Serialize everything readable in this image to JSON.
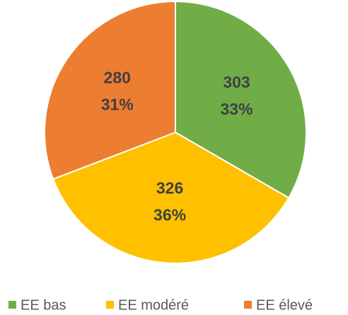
{
  "chart_data": {
    "type": "pie",
    "categories": [
      "EE bas",
      "EE modéré",
      "EE élevé"
    ],
    "values": [
      303,
      326,
      280
    ],
    "percent_labels": [
      "33%",
      "36%",
      "31%"
    ],
    "colors": [
      "#70ad47",
      "#ffc000",
      "#ed7d31"
    ],
    "legend": "bottom"
  }
}
